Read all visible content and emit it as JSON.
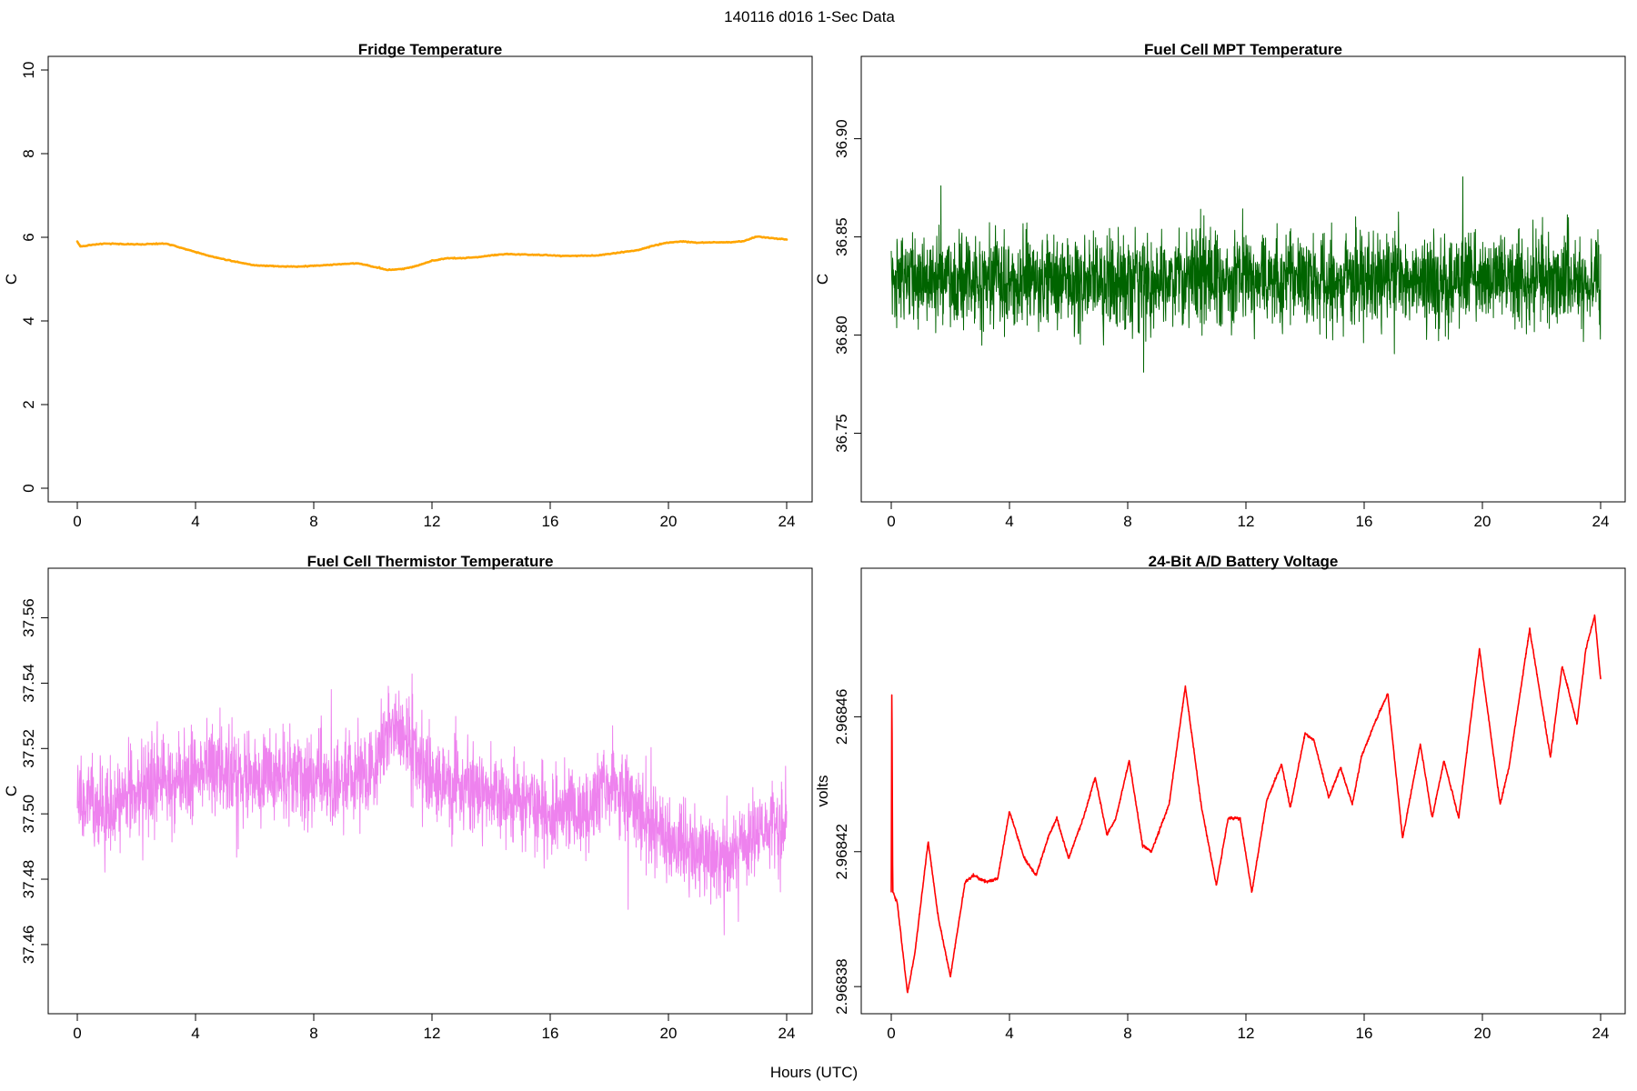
{
  "figure": {
    "title": "140116   d016   1-Sec Data",
    "xlabel": "Hours (UTC)"
  },
  "chart_data": [
    {
      "type": "line",
      "title": "Fridge Temperature",
      "xlabel": "",
      "ylabel": "C",
      "xlim": [
        0,
        24
      ],
      "ylim": [
        0,
        10
      ],
      "xticks": [
        0,
        4,
        8,
        12,
        16,
        20,
        24
      ],
      "yticks": [
        0,
        2,
        4,
        6,
        8,
        10
      ],
      "ytick_labels": [
        "0",
        "2",
        "4",
        "6",
        "8",
        "10"
      ],
      "color": "#FFA500",
      "noise": 0.02,
      "series": [
        {
          "name": "Fridge Temperature",
          "x": [
            0,
            0.1,
            0.5,
            1,
            1.5,
            2,
            2.5,
            3,
            3.5,
            4,
            4.5,
            5,
            5.5,
            6,
            6.5,
            7,
            7.5,
            8,
            8.5,
            9,
            9.5,
            10,
            10.5,
            11,
            11.5,
            12,
            12.5,
            13,
            13.5,
            14,
            14.5,
            15,
            15.5,
            16,
            16.5,
            17,
            17.5,
            18,
            18.5,
            19,
            19.5,
            20,
            20.5,
            21,
            21.5,
            22,
            22.5,
            23,
            23.5,
            24
          ],
          "y": [
            5.9,
            5.78,
            5.82,
            5.85,
            5.84,
            5.83,
            5.84,
            5.85,
            5.75,
            5.65,
            5.55,
            5.47,
            5.4,
            5.33,
            5.32,
            5.3,
            5.3,
            5.32,
            5.34,
            5.36,
            5.38,
            5.3,
            5.22,
            5.24,
            5.32,
            5.44,
            5.5,
            5.5,
            5.52,
            5.57,
            5.6,
            5.59,
            5.58,
            5.57,
            5.55,
            5.56,
            5.56,
            5.6,
            5.65,
            5.7,
            5.8,
            5.88,
            5.9,
            5.87,
            5.88,
            5.88,
            5.9,
            6.02,
            5.98,
            5.95
          ]
        }
      ]
    },
    {
      "type": "line",
      "title": "Fuel Cell MPT Temperature",
      "xlabel": "",
      "ylabel": "C",
      "xlim": [
        0,
        24
      ],
      "ylim": [
        36.722,
        36.935
      ],
      "xticks": [
        0,
        4,
        8,
        12,
        16,
        20,
        24
      ],
      "yticks": [
        36.75,
        36.8,
        36.85,
        36.9
      ],
      "ytick_labels": [
        "36.75",
        "36.80",
        "36.85",
        "36.90"
      ],
      "color": "#006400",
      "noise": 0.045,
      "series": [
        {
          "name": "Fuel Cell MPT Temperature",
          "x": [
            0,
            2,
            4,
            6,
            8,
            10,
            12,
            14,
            16,
            18,
            20,
            22,
            24
          ],
          "y": [
            36.828,
            36.828,
            36.828,
            36.828,
            36.828,
            36.828,
            36.828,
            36.828,
            36.828,
            36.828,
            36.828,
            36.828,
            36.828
          ]
        }
      ]
    },
    {
      "type": "line",
      "title": "Fuel Cell Thermistor Temperature",
      "xlabel": "",
      "ylabel": "C",
      "xlim": [
        0,
        24
      ],
      "ylim": [
        37.443,
        37.571
      ],
      "xticks": [
        0,
        4,
        8,
        12,
        16,
        20,
        24
      ],
      "yticks": [
        37.46,
        37.48,
        37.5,
        37.52,
        37.54,
        37.56
      ],
      "ytick_labels": [
        "37.46",
        "37.48",
        "37.50",
        "37.52",
        "37.54",
        "37.56"
      ],
      "color": "#EE82EE",
      "noise": 0.026,
      "series": [
        {
          "name": "Fuel Cell Thermistor Temperature",
          "x": [
            0,
            1,
            2,
            3,
            4,
            5,
            6,
            7,
            8,
            9,
            10,
            10.5,
            11,
            12,
            13,
            14,
            15,
            16,
            17,
            18,
            19,
            20,
            21,
            22,
            23,
            24
          ],
          "y": [
            37.505,
            37.5,
            37.508,
            37.51,
            37.512,
            37.513,
            37.51,
            37.512,
            37.51,
            37.51,
            37.512,
            37.527,
            37.525,
            37.51,
            37.508,
            37.505,
            37.505,
            37.5,
            37.5,
            37.51,
            37.502,
            37.49,
            37.488,
            37.485,
            37.495,
            37.497
          ]
        }
      ]
    },
    {
      "type": "line",
      "title": "24-Bit A/D Battery Voltage",
      "xlabel": "",
      "ylabel": "volts",
      "xlim": [
        0,
        24
      ],
      "ylim": [
        2.968376,
        2.9685
      ],
      "xticks": [
        0,
        4,
        8,
        12,
        16,
        20,
        24
      ],
      "yticks": [
        2.96838,
        2.96842,
        2.96846
      ],
      "ytick_labels": [
        "2.96838",
        "2.96842",
        "2.96846"
      ],
      "color": "#FF0000",
      "noise": 8e-07,
      "series": [
        {
          "name": "24-Bit A/D Battery Voltage",
          "x": [
            0,
            0.02,
            0.05,
            0.2,
            0.55,
            0.8,
            1.25,
            1.6,
            2.0,
            2.5,
            2.8,
            3.2,
            3.6,
            4.0,
            4.5,
            4.9,
            5.3,
            5.6,
            6.0,
            6.5,
            6.9,
            7.3,
            7.6,
            8.05,
            8.5,
            8.8,
            9.4,
            9.95,
            10.5,
            11.0,
            11.4,
            11.8,
            12.2,
            12.7,
            13.2,
            13.5,
            14.0,
            14.3,
            14.8,
            15.2,
            15.6,
            15.9,
            16.4,
            16.8,
            17.3,
            17.9,
            18.3,
            18.7,
            19.2,
            19.9,
            20.6,
            20.9,
            21.6,
            22.3,
            22.7,
            23.2,
            23.5,
            23.8,
            24.0
          ],
          "y": [
            2.968408,
            2.968471,
            2.968408,
            2.968405,
            2.968378,
            2.96839,
            2.968423,
            2.9684,
            2.968383,
            2.968411,
            2.968413,
            2.968411,
            2.968412,
            2.968432,
            2.968418,
            2.968413,
            2.968424,
            2.96843,
            2.968418,
            2.96843,
            2.968442,
            2.968425,
            2.96843,
            2.968447,
            2.968422,
            2.96842,
            2.968434,
            2.968469,
            2.968433,
            2.96841,
            2.96843,
            2.96843,
            2.968408,
            2.968435,
            2.968446,
            2.968433,
            2.968455,
            2.968453,
            2.968436,
            2.968445,
            2.968434,
            2.968448,
            2.968459,
            2.968467,
            2.968424,
            2.968452,
            2.96843,
            2.968447,
            2.96843,
            2.96848,
            2.968434,
            2.968445,
            2.968486,
            2.968448,
            2.968475,
            2.968458,
            2.96848,
            2.96849,
            2.968471
          ]
        }
      ]
    }
  ]
}
